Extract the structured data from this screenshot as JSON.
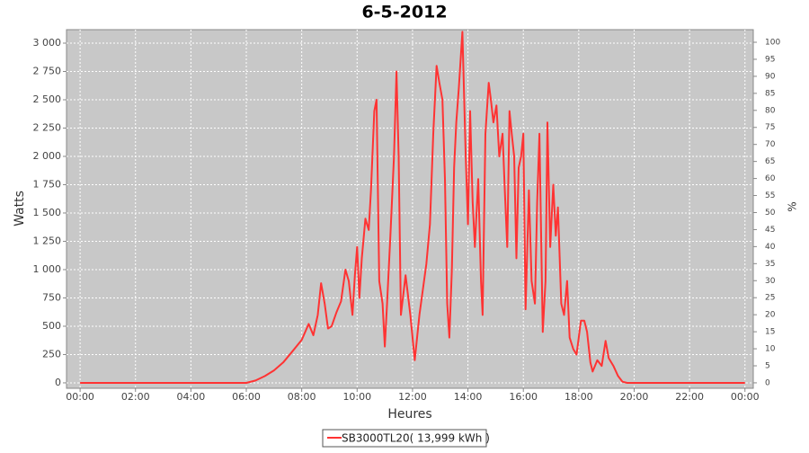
{
  "chart_data": {
    "type": "line",
    "title": "6-5-2012",
    "x_label": "Heures",
    "y_label": "Watts",
    "y2_label": "%",
    "xlim": [
      -0.49,
      24.3
    ],
    "ylim": [
      -48,
      3119
    ],
    "y2lim": [
      -1.6,
      103.7
    ],
    "xticks": [
      {
        "value": 0,
        "label": "00:00"
      },
      {
        "value": 2,
        "label": "02:00"
      },
      {
        "value": 4,
        "label": "04:00"
      },
      {
        "value": 6,
        "label": "06:00"
      },
      {
        "value": 8,
        "label": "08:00"
      },
      {
        "value": 10,
        "label": "10:00"
      },
      {
        "value": 12,
        "label": "12:00"
      },
      {
        "value": 14,
        "label": "14:00"
      },
      {
        "value": 16,
        "label": "16:00"
      },
      {
        "value": 18,
        "label": "18:00"
      },
      {
        "value": 20,
        "label": "20:00"
      },
      {
        "value": 22,
        "label": "22:00"
      },
      {
        "value": 24,
        "label": "00:00"
      }
    ],
    "yticks": [
      0,
      250,
      500,
      750,
      {
        "value": 1000,
        "label": "1 000"
      },
      {
        "value": 1250,
        "label": "1 250"
      },
      {
        "value": 1500,
        "label": "1 500"
      },
      {
        "value": 1750,
        "label": "1 750"
      },
      {
        "value": 2000,
        "label": "2 000"
      },
      {
        "value": 2250,
        "label": "2 250"
      },
      {
        "value": 2500,
        "label": "2 500"
      },
      {
        "value": 2750,
        "label": "2 750"
      },
      {
        "value": 3000,
        "label": "3 000"
      }
    ],
    "y2ticks": [
      0,
      5,
      10,
      15,
      20,
      25,
      30,
      35,
      40,
      45,
      50,
      55,
      60,
      65,
      70,
      75,
      80,
      85,
      90,
      95,
      100
    ],
    "grid": true,
    "x": [
      0,
      6,
      6.33,
      6.67,
      7,
      7.33,
      7.67,
      8,
      8.25,
      8.42,
      8.58,
      8.7,
      8.83,
      8.95,
      9.08,
      9.25,
      9.42,
      9.58,
      9.7,
      9.83,
      9.92,
      10,
      10.08,
      10.17,
      10.3,
      10.42,
      10.5,
      10.62,
      10.7,
      10.8,
      10.92,
      11,
      11.08,
      11.2,
      11.33,
      11.42,
      11.5,
      11.58,
      11.75,
      11.92,
      12.08,
      12.25,
      12.5,
      12.63,
      12.75,
      12.87,
      12.97,
      13.08,
      13.17,
      13.25,
      13.33,
      13.42,
      13.5,
      13.58,
      13.67,
      13.8,
      13.92,
      14,
      14.08,
      14.17,
      14.25,
      14.37,
      14.47,
      14.53,
      14.63,
      14.75,
      14.83,
      14.92,
      15.03,
      15.13,
      15.25,
      15.33,
      15.42,
      15.5,
      15.58,
      15.67,
      15.75,
      15.83,
      15.92,
      16,
      16.08,
      16.2,
      16.3,
      16.42,
      16.5,
      16.58,
      16.7,
      16.8,
      16.87,
      16.97,
      17.08,
      17.17,
      17.25,
      17.37,
      17.47,
      17.58,
      17.67,
      17.8,
      17.92,
      18.08,
      18.2,
      18.3,
      18.42,
      18.5,
      18.67,
      18.83,
      18.97,
      19.08,
      19.25,
      19.42,
      19.58,
      19.75,
      24
    ],
    "series": [
      {
        "name": "SB3000TL20( 13,999 kWh )",
        "color": "#ff3333",
        "values": [
          0,
          0,
          20,
          60,
          110,
          180,
          280,
          380,
          520,
          420,
          600,
          880,
          700,
          480,
          500,
          620,
          720,
          1000,
          900,
          600,
          950,
          1200,
          750,
          1100,
          1450,
          1350,
          1700,
          2400,
          2500,
          900,
          700,
          320,
          700,
          1300,
          2000,
          2750,
          2000,
          600,
          950,
          600,
          200,
          600,
          1050,
          1400,
          2200,
          2800,
          2650,
          2500,
          1800,
          700,
          400,
          1000,
          1900,
          2300,
          2600,
          3100,
          2000,
          1400,
          2400,
          1600,
          1200,
          1800,
          900,
          600,
          2200,
          2650,
          2500,
          2300,
          2450,
          2000,
          2200,
          1700,
          1200,
          2400,
          2200,
          2000,
          1100,
          1900,
          2000,
          2200,
          650,
          1700,
          900,
          700,
          1600,
          2200,
          450,
          900,
          2300,
          1200,
          1750,
          1300,
          1550,
          700,
          600,
          900,
          400,
          300,
          250,
          550,
          550,
          450,
          180,
          100,
          200,
          150,
          370,
          220,
          150,
          60,
          10,
          0,
          0
        ]
      }
    ]
  }
}
